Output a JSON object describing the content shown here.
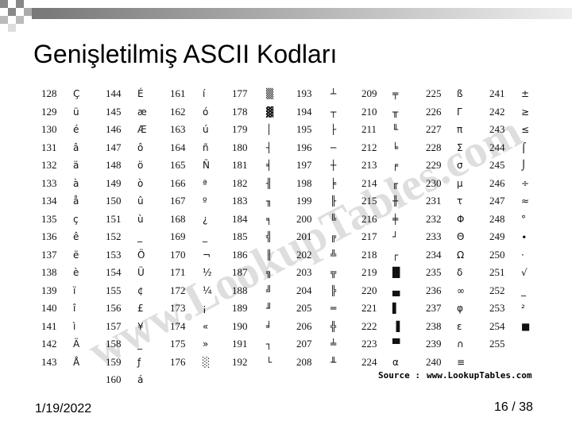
{
  "header": {
    "title": "Genişletilmiş ASCII Kodları"
  },
  "table": {
    "columns": [
      [
        [
          128,
          "Ç"
        ],
        [
          129,
          "ü"
        ],
        [
          130,
          "é"
        ],
        [
          131,
          "â"
        ],
        [
          132,
          "ä"
        ],
        [
          133,
          "à"
        ],
        [
          134,
          "å"
        ],
        [
          135,
          "ç"
        ],
        [
          136,
          "ê"
        ],
        [
          137,
          "ë"
        ],
        [
          138,
          "è"
        ],
        [
          139,
          "ï"
        ],
        [
          140,
          "î"
        ],
        [
          141,
          "ì"
        ],
        [
          142,
          "Ä"
        ],
        [
          143,
          "Å"
        ]
      ],
      [
        [
          144,
          "É"
        ],
        [
          145,
          "æ"
        ],
        [
          146,
          "Æ"
        ],
        [
          147,
          "ô"
        ],
        [
          148,
          "ö"
        ],
        [
          149,
          "ò"
        ],
        [
          150,
          "û"
        ],
        [
          151,
          "ù"
        ],
        [
          152,
          "_"
        ],
        [
          153,
          "Ö"
        ],
        [
          154,
          "Ü"
        ],
        [
          155,
          "¢"
        ],
        [
          156,
          "£"
        ],
        [
          157,
          "¥"
        ],
        [
          158,
          "_"
        ],
        [
          159,
          "ƒ"
        ],
        [
          160,
          "á"
        ]
      ],
      [
        [
          161,
          "í"
        ],
        [
          162,
          "ó"
        ],
        [
          163,
          "ú"
        ],
        [
          164,
          "ñ"
        ],
        [
          165,
          "Ñ"
        ],
        [
          166,
          "ª"
        ],
        [
          167,
          "º"
        ],
        [
          168,
          "¿"
        ],
        [
          169,
          "_"
        ],
        [
          170,
          "¬"
        ],
        [
          171,
          "½"
        ],
        [
          172,
          "¼"
        ],
        [
          173,
          "¡"
        ],
        [
          174,
          "«"
        ],
        [
          175,
          "»"
        ],
        [
          176,
          "░"
        ]
      ],
      [
        [
          177,
          "▒"
        ],
        [
          178,
          "▓"
        ],
        [
          179,
          "│"
        ],
        [
          180,
          "┤"
        ],
        [
          181,
          "╡"
        ],
        [
          182,
          "╢"
        ],
        [
          183,
          "╖"
        ],
        [
          184,
          "╕"
        ],
        [
          185,
          "╣"
        ],
        [
          186,
          "║"
        ],
        [
          187,
          "╗"
        ],
        [
          188,
          "╝"
        ],
        [
          189,
          "╜"
        ],
        [
          190,
          "╛"
        ],
        [
          191,
          "┐"
        ],
        [
          192,
          "└"
        ]
      ],
      [
        [
          193,
          "┴"
        ],
        [
          194,
          "┬"
        ],
        [
          195,
          "├"
        ],
        [
          196,
          "─"
        ],
        [
          197,
          "┼"
        ],
        [
          198,
          "╞"
        ],
        [
          199,
          "╟"
        ],
        [
          200,
          "╚"
        ],
        [
          201,
          "╔"
        ],
        [
          202,
          "╩"
        ],
        [
          203,
          "╦"
        ],
        [
          204,
          "╠"
        ],
        [
          205,
          "═"
        ],
        [
          206,
          "╬"
        ],
        [
          207,
          "╧"
        ],
        [
          208,
          "╨"
        ]
      ],
      [
        [
          209,
          "╤"
        ],
        [
          210,
          "╥"
        ],
        [
          211,
          "╙"
        ],
        [
          212,
          "╘"
        ],
        [
          213,
          "╒"
        ],
        [
          214,
          "╓"
        ],
        [
          215,
          "╫"
        ],
        [
          216,
          "╪"
        ],
        [
          217,
          "┘"
        ],
        [
          218,
          "┌"
        ],
        [
          219,
          "█"
        ],
        [
          220,
          "▄"
        ],
        [
          221,
          "▌"
        ],
        [
          222,
          "▐"
        ],
        [
          223,
          "▀"
        ],
        [
          224,
          "α"
        ]
      ],
      [
        [
          225,
          "ß"
        ],
        [
          226,
          "Γ"
        ],
        [
          227,
          "π"
        ],
        [
          228,
          "Σ"
        ],
        [
          229,
          "σ"
        ],
        [
          230,
          "µ"
        ],
        [
          231,
          "τ"
        ],
        [
          232,
          "Φ"
        ],
        [
          233,
          "Θ"
        ],
        [
          234,
          "Ω"
        ],
        [
          235,
          "δ"
        ],
        [
          236,
          "∞"
        ],
        [
          237,
          "φ"
        ],
        [
          238,
          "ε"
        ],
        [
          239,
          "∩"
        ],
        [
          240,
          "≡"
        ]
      ],
      [
        [
          241,
          "±"
        ],
        [
          242,
          "≥"
        ],
        [
          243,
          "≤"
        ],
        [
          244,
          "⌠"
        ],
        [
          245,
          "⌡"
        ],
        [
          246,
          "÷"
        ],
        [
          247,
          "≈"
        ],
        [
          248,
          "°"
        ],
        [
          249,
          "∙"
        ],
        [
          250,
          "·"
        ],
        [
          251,
          "√"
        ],
        [
          252,
          "_"
        ],
        [
          253,
          "²"
        ],
        [
          254,
          "■"
        ],
        [
          255
        ]
      ]
    ],
    "watermark": "www.LookupTables.com",
    "source_label": "Source :",
    "source_url": "www.LookupTables.com"
  },
  "footer": {
    "date": "1/19/2022",
    "page": "16 / 38"
  }
}
